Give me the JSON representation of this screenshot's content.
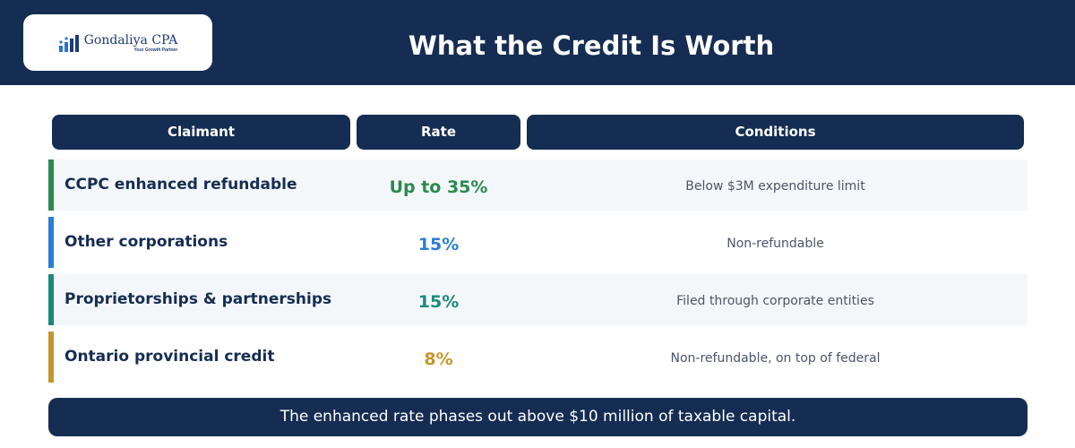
{
  "header": {
    "title": "What the Credit Is Worth",
    "logo": {
      "name": "Gondaliya CPA",
      "tagline": "Your Growth Partner",
      "icon": "bar-growth-logo-icon",
      "color": "#1c3b7a"
    },
    "background": "#152d52"
  },
  "table": {
    "columns": [
      "Claimant",
      "Rate",
      "Conditions"
    ],
    "rows": [
      {
        "claimant": "CCPC enhanced refundable",
        "rate": "Up to 35%",
        "conditions": "Below $3M expenditure limit",
        "accent": "#2a8a4e"
      },
      {
        "claimant": "Other corporations",
        "rate": "15%",
        "conditions": "Non-refundable",
        "accent": "#2b7fd0"
      },
      {
        "claimant": "Proprietorships & partnerships",
        "rate": "15%",
        "conditions": "Filed through corporate entities",
        "accent": "#1a8a7e"
      },
      {
        "claimant": "Ontario provincial credit",
        "rate": "8%",
        "conditions": "Non-refundable, on top of federal",
        "accent": "#c4962a"
      }
    ]
  },
  "footer": {
    "note": "The enhanced rate phases out above $10 million of taxable capital."
  }
}
